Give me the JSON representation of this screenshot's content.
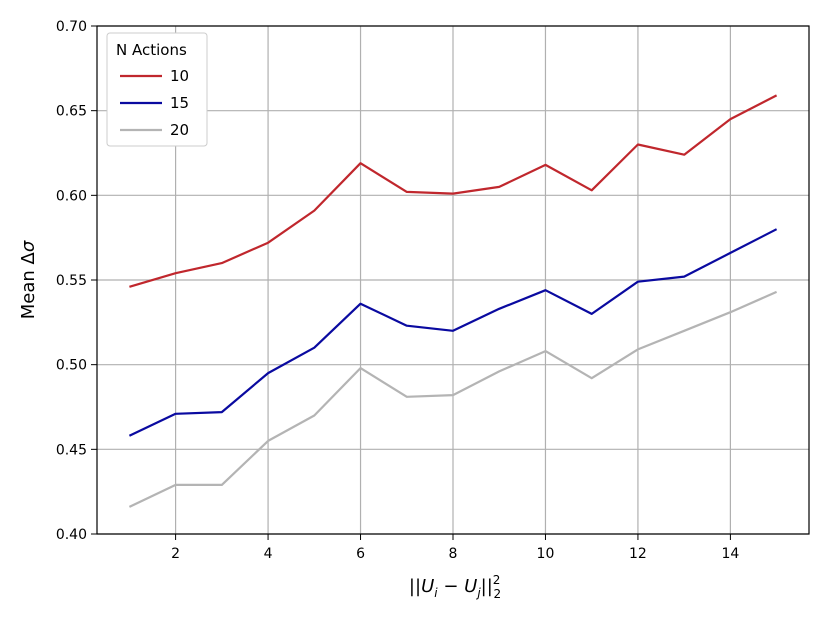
{
  "chart_data": {
    "type": "line",
    "x": [
      1,
      2,
      3,
      4,
      5,
      6,
      7,
      8,
      9,
      10,
      11,
      12,
      13,
      14,
      15
    ],
    "series": [
      {
        "name": "10",
        "color": "#c0272d",
        "values": [
          0.546,
          0.554,
          0.56,
          0.572,
          0.591,
          0.619,
          0.602,
          0.601,
          0.605,
          0.618,
          0.603,
          0.63,
          0.624,
          0.645,
          0.659
        ]
      },
      {
        "name": "15",
        "color": "#0a0aa0",
        "values": [
          0.458,
          0.471,
          0.472,
          0.495,
          0.51,
          0.536,
          0.523,
          0.52,
          0.533,
          0.544,
          0.53,
          0.549,
          0.552,
          0.566,
          0.58
        ]
      },
      {
        "name": "20",
        "color": "#b4b4b4",
        "values": [
          0.416,
          0.429,
          0.429,
          0.455,
          0.47,
          0.498,
          0.481,
          0.482,
          0.496,
          0.508,
          0.492,
          0.509,
          0.52,
          0.531,
          0.543
        ]
      }
    ],
    "xlabel": "||U_i − U_j||₂²",
    "ylabel": "Mean Δσ",
    "xlim": [
      0.3,
      15.7
    ],
    "ylim": [
      0.4,
      0.7
    ],
    "x_ticks": [
      "2",
      "4",
      "6",
      "8",
      "10",
      "12",
      "14"
    ],
    "y_ticks": [
      "0.40",
      "0.45",
      "0.50",
      "0.55",
      "0.60",
      "0.65",
      "0.70"
    ],
    "grid": true,
    "legend": {
      "title": "N Actions",
      "position": "top-left"
    }
  }
}
